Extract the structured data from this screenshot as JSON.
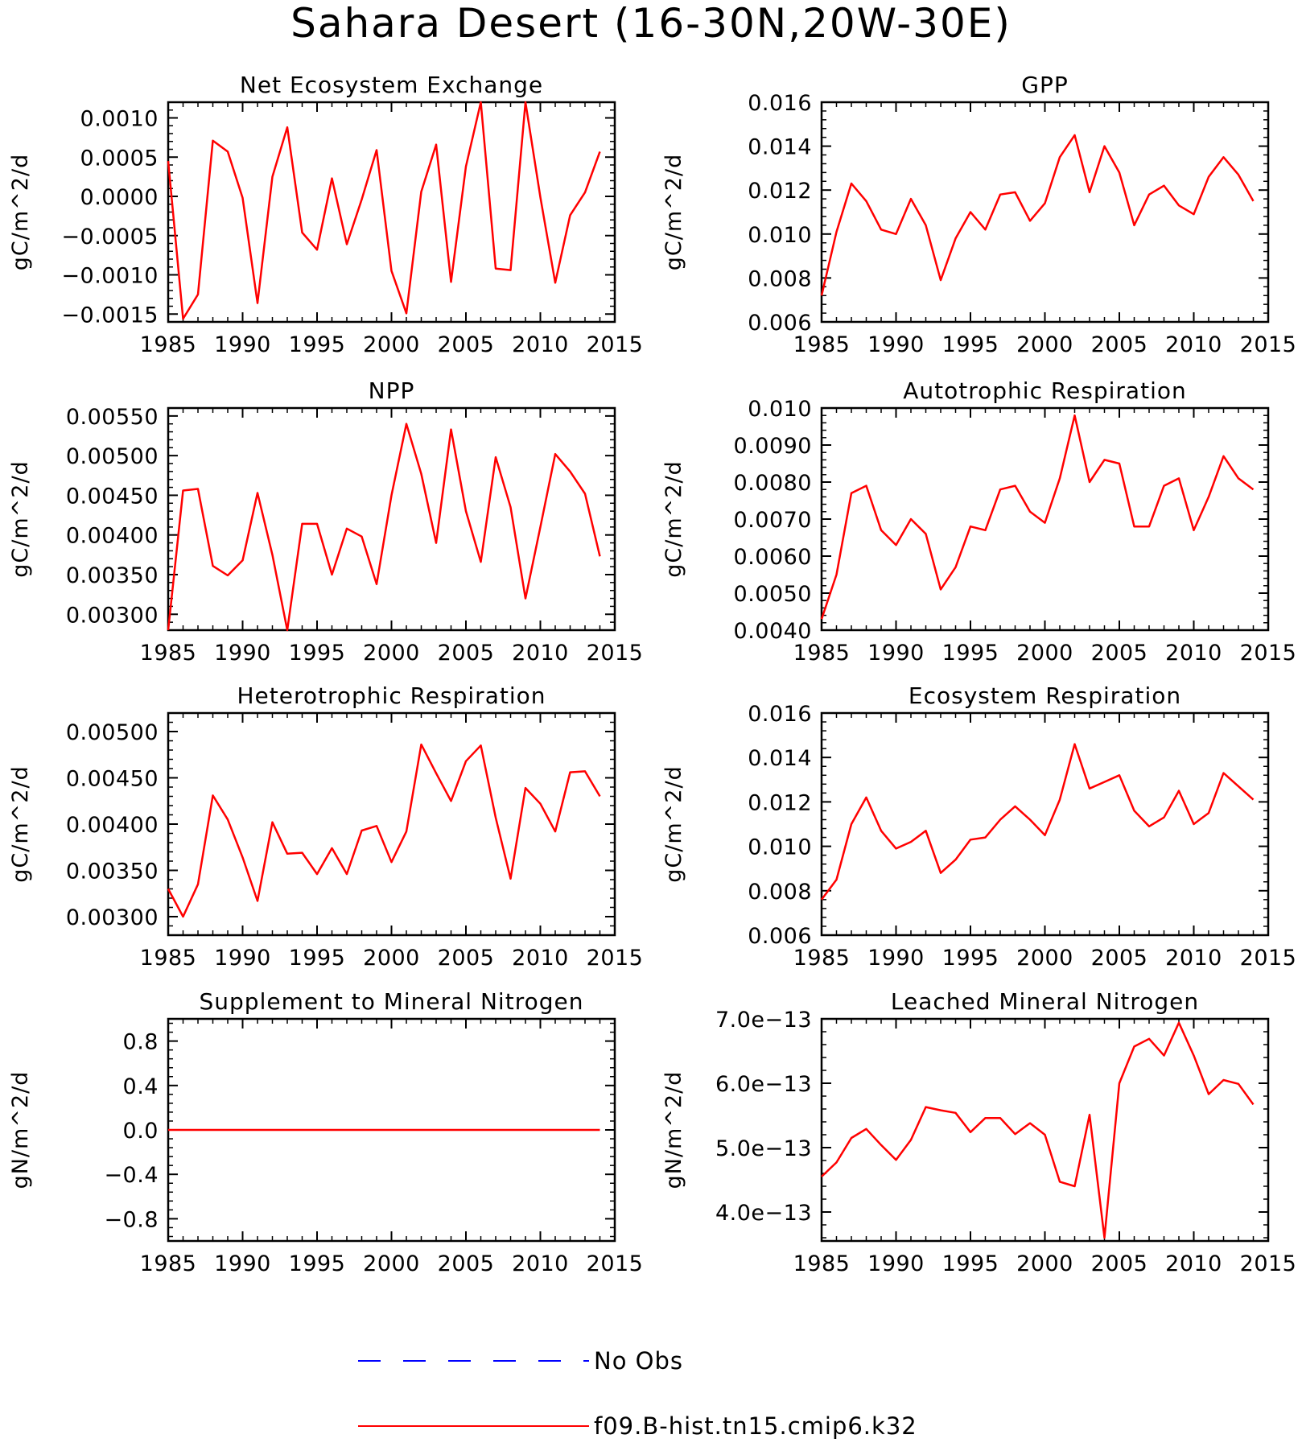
{
  "page": {
    "title": "Sahara Desert (16-30N,20W-30E)"
  },
  "colors": {
    "model_line": "#ff0000",
    "obs_line": "#0000ff",
    "axis": "#000000",
    "background": "#ffffff"
  },
  "legend": {
    "entries": [
      {
        "label": "No Obs",
        "style": "dashed",
        "color": "#0000ff"
      },
      {
        "label": "f09.B-hist.tn15.cmip6.k32",
        "style": "solid",
        "color": "#ff0000"
      }
    ]
  },
  "chart_data": [
    {
      "id": "nee",
      "type": "line",
      "title": "Net Ecosystem Exchange",
      "ylabel": "gC/m^2/d",
      "xlim": [
        1985,
        2015
      ],
      "ylim": [
        -0.0016,
        0.0012
      ],
      "xticks": [
        1985,
        1990,
        1995,
        2000,
        2005,
        2010,
        2015
      ],
      "yticks": [
        -0.0015,
        -0.001,
        -0.0005,
        0.0,
        0.0005,
        0.001
      ],
      "ytick_labels": [
        "−0.0015",
        "−0.0010",
        "−0.0005",
        "0.0000",
        "0.0005",
        "0.0010"
      ],
      "x": [
        1985,
        1986,
        1987,
        1988,
        1989,
        1990,
        1991,
        1992,
        1993,
        1994,
        1995,
        1996,
        1997,
        1998,
        1999,
        2000,
        2001,
        2002,
        2003,
        2004,
        2005,
        2006,
        2007,
        2008,
        2009,
        2010,
        2011,
        2012,
        2013,
        2014
      ],
      "series": [
        {
          "name": "f09.B-hist.tn15.cmip6.k32",
          "values": [
            0.00045,
            -0.00156,
            -0.00125,
            0.00071,
            0.00057,
            -2e-05,
            -0.00136,
            0.00025,
            0.00088,
            -0.00046,
            -0.00068,
            0.00023,
            -0.00061,
            -4e-05,
            0.00059,
            -0.00095,
            -0.00149,
            6e-05,
            0.00066,
            -0.00109,
            0.00038,
            0.00121,
            -0.00092,
            -0.00094,
            0.00121,
            -1e-05,
            -0.0011,
            -0.00024,
            5e-05,
            0.00057
          ]
        }
      ]
    },
    {
      "id": "gpp",
      "type": "line",
      "title": "GPP",
      "ylabel": "gC/m^2/d",
      "xlim": [
        1985,
        2015
      ],
      "ylim": [
        0.006,
        0.016
      ],
      "xticks": [
        1985,
        1990,
        1995,
        2000,
        2005,
        2010,
        2015
      ],
      "yticks": [
        0.006,
        0.008,
        0.01,
        0.012,
        0.014,
        0.016
      ],
      "ytick_labels": [
        "0.006",
        "0.008",
        "0.010",
        "0.012",
        "0.014",
        "0.016"
      ],
      "x": [
        1985,
        1986,
        1987,
        1988,
        1989,
        1990,
        1991,
        1992,
        1993,
        1994,
        1995,
        1996,
        1997,
        1998,
        1999,
        2000,
        2001,
        2002,
        2003,
        2004,
        2005,
        2006,
        2007,
        2008,
        2009,
        2010,
        2011,
        2012,
        2013,
        2014
      ],
      "series": [
        {
          "name": "f09.B-hist.tn15.cmip6.k32",
          "values": [
            0.0072,
            0.0101,
            0.0123,
            0.0115,
            0.0102,
            0.01,
            0.0116,
            0.0104,
            0.0079,
            0.0098,
            0.011,
            0.0102,
            0.0118,
            0.0119,
            0.0106,
            0.0114,
            0.0135,
            0.0145,
            0.0119,
            0.014,
            0.0128,
            0.0104,
            0.0118,
            0.0122,
            0.0113,
            0.0109,
            0.0126,
            0.0135,
            0.0127,
            0.0115
          ]
        }
      ]
    },
    {
      "id": "npp",
      "type": "line",
      "title": "NPP",
      "ylabel": "gC/m^2/d",
      "xlim": [
        1985,
        2015
      ],
      "ylim": [
        0.0028,
        0.0056
      ],
      "xticks": [
        1985,
        1990,
        1995,
        2000,
        2005,
        2010,
        2015
      ],
      "yticks": [
        0.003,
        0.0035,
        0.004,
        0.0045,
        0.005,
        0.0055
      ],
      "ytick_labels": [
        "0.00300",
        "0.00350",
        "0.00400",
        "0.00450",
        "0.00500",
        "0.00550"
      ],
      "x": [
        1985,
        1986,
        1987,
        1988,
        1989,
        1990,
        1991,
        1992,
        1993,
        1994,
        1995,
        1996,
        1997,
        1998,
        1999,
        2000,
        2001,
        2002,
        2003,
        2004,
        2005,
        2006,
        2007,
        2008,
        2009,
        2010,
        2011,
        2012,
        2013,
        2014
      ],
      "series": [
        {
          "name": "f09.B-hist.tn15.cmip6.k32",
          "values": [
            0.0028,
            0.00456,
            0.00458,
            0.00361,
            0.00349,
            0.00368,
            0.00453,
            0.00375,
            0.0028,
            0.00414,
            0.00414,
            0.0035,
            0.00408,
            0.00398,
            0.00338,
            0.0045,
            0.0054,
            0.00477,
            0.0039,
            0.00533,
            0.0043,
            0.00366,
            0.00498,
            0.00435,
            0.0032,
            0.0041,
            0.00502,
            0.0048,
            0.00452,
            0.00373
          ]
        }
      ]
    },
    {
      "id": "ar",
      "type": "line",
      "title": "Autotrophic Respiration",
      "ylabel": "gC/m^2/d",
      "xlim": [
        1985,
        2015
      ],
      "ylim": [
        0.004,
        0.01
      ],
      "xticks": [
        1985,
        1990,
        1995,
        2000,
        2005,
        2010,
        2015
      ],
      "yticks": [
        0.004,
        0.005,
        0.006,
        0.007,
        0.008,
        0.009,
        0.01
      ],
      "ytick_labels": [
        "0.0040",
        "0.0050",
        "0.0060",
        "0.0070",
        "0.0080",
        "0.0090",
        "0.010"
      ],
      "x": [
        1985,
        1986,
        1987,
        1988,
        1989,
        1990,
        1991,
        1992,
        1993,
        1994,
        1995,
        1996,
        1997,
        1998,
        1999,
        2000,
        2001,
        2002,
        2003,
        2004,
        2005,
        2006,
        2007,
        2008,
        2009,
        2010,
        2011,
        2012,
        2013,
        2014
      ],
      "series": [
        {
          "name": "f09.B-hist.tn15.cmip6.k32",
          "values": [
            0.0043,
            0.0055,
            0.0077,
            0.0079,
            0.0067,
            0.0063,
            0.007,
            0.0066,
            0.0051,
            0.0057,
            0.0068,
            0.0067,
            0.0078,
            0.0079,
            0.0072,
            0.0069,
            0.0081,
            0.0098,
            0.008,
            0.0086,
            0.0085,
            0.0068,
            0.0068,
            0.0079,
            0.0081,
            0.0067,
            0.0076,
            0.0087,
            0.0081,
            0.0078
          ]
        }
      ]
    },
    {
      "id": "hr",
      "type": "line",
      "title": "Heterotrophic Respiration",
      "ylabel": "gC/m^2/d",
      "xlim": [
        1985,
        2015
      ],
      "ylim": [
        0.0028,
        0.0052
      ],
      "xticks": [
        1985,
        1990,
        1995,
        2000,
        2005,
        2010,
        2015
      ],
      "yticks": [
        0.003,
        0.0035,
        0.004,
        0.0045,
        0.005
      ],
      "ytick_labels": [
        "0.00300",
        "0.00350",
        "0.00400",
        "0.00450",
        "0.00500"
      ],
      "x": [
        1985,
        1986,
        1987,
        1988,
        1989,
        1990,
        1991,
        1992,
        1993,
        1994,
        1995,
        1996,
        1997,
        1998,
        1999,
        2000,
        2001,
        2002,
        2003,
        2004,
        2005,
        2006,
        2007,
        2008,
        2009,
        2010,
        2011,
        2012,
        2013,
        2014
      ],
      "series": [
        {
          "name": "f09.B-hist.tn15.cmip6.k32",
          "values": [
            0.0033,
            0.003,
            0.00335,
            0.00431,
            0.00405,
            0.00364,
            0.00317,
            0.00402,
            0.00368,
            0.00369,
            0.00346,
            0.00374,
            0.00346,
            0.00393,
            0.00398,
            0.00359,
            0.00392,
            0.00486,
            0.00455,
            0.00425,
            0.00468,
            0.00485,
            0.00407,
            0.00341,
            0.00439,
            0.00422,
            0.00392,
            0.00456,
            0.00457,
            0.0043
          ]
        }
      ]
    },
    {
      "id": "er",
      "type": "line",
      "title": "Ecosystem Respiration",
      "ylabel": "gC/m^2/d",
      "xlim": [
        1985,
        2015
      ],
      "ylim": [
        0.006,
        0.016
      ],
      "xticks": [
        1985,
        1990,
        1995,
        2000,
        2005,
        2010,
        2015
      ],
      "yticks": [
        0.006,
        0.008,
        0.01,
        0.012,
        0.014,
        0.016
      ],
      "ytick_labels": [
        "0.006",
        "0.008",
        "0.010",
        "0.012",
        "0.014",
        "0.016"
      ],
      "x": [
        1985,
        1986,
        1987,
        1988,
        1989,
        1990,
        1991,
        1992,
        1993,
        1994,
        1995,
        1996,
        1997,
        1998,
        1999,
        2000,
        2001,
        2002,
        2003,
        2004,
        2005,
        2006,
        2007,
        2008,
        2009,
        2010,
        2011,
        2012,
        2013,
        2014
      ],
      "series": [
        {
          "name": "f09.B-hist.tn15.cmip6.k32",
          "values": [
            0.0076,
            0.0085,
            0.011,
            0.0122,
            0.0107,
            0.0099,
            0.0102,
            0.0107,
            0.0088,
            0.0094,
            0.0103,
            0.0104,
            0.0112,
            0.0118,
            0.0112,
            0.0105,
            0.0121,
            0.0146,
            0.0126,
            0.0129,
            0.0132,
            0.0116,
            0.0109,
            0.0113,
            0.0125,
            0.011,
            0.0115,
            0.0133,
            0.0127,
            0.0121
          ]
        }
      ]
    },
    {
      "id": "supp",
      "type": "line",
      "title": "Supplement to Mineral Nitrogen",
      "ylabel": "gN/m^2/d",
      "xlim": [
        1985,
        2015
      ],
      "ylim": [
        -1.0,
        1.0
      ],
      "xticks": [
        1985,
        1990,
        1995,
        2000,
        2005,
        2010,
        2015
      ],
      "yticks": [
        -0.8,
        -0.4,
        0.0,
        0.4,
        0.8
      ],
      "ytick_labels": [
        "−0.8",
        "−0.4",
        "0.0",
        "0.4",
        "0.8"
      ],
      "x": [
        1985,
        1986,
        1987,
        1988,
        1989,
        1990,
        1991,
        1992,
        1993,
        1994,
        1995,
        1996,
        1997,
        1998,
        1999,
        2000,
        2001,
        2002,
        2003,
        2004,
        2005,
        2006,
        2007,
        2008,
        2009,
        2010,
        2011,
        2012,
        2013,
        2014
      ],
      "series": [
        {
          "name": "f09.B-hist.tn15.cmip6.k32",
          "values": [
            0,
            0,
            0,
            0,
            0,
            0,
            0,
            0,
            0,
            0,
            0,
            0,
            0,
            0,
            0,
            0,
            0,
            0,
            0,
            0,
            0,
            0,
            0,
            0,
            0,
            0,
            0,
            0,
            0,
            0
          ]
        }
      ]
    },
    {
      "id": "leach",
      "type": "line",
      "title": "Leached Mineral Nitrogen",
      "ylabel": "gN/m^2/d",
      "xlim": [
        1985,
        2015
      ],
      "ylim": [
        3.55e-13,
        7e-13
      ],
      "xticks": [
        1985,
        1990,
        1995,
        2000,
        2005,
        2010,
        2015
      ],
      "yticks": [
        4e-13,
        5e-13,
        6e-13,
        7e-13
      ],
      "ytick_labels": [
        "4.0e−13",
        "5.0e−13",
        "6.0e−13",
        "7.0e−13"
      ],
      "x": [
        1985,
        1986,
        1987,
        1988,
        1989,
        1990,
        1991,
        1992,
        1993,
        1994,
        1995,
        1996,
        1997,
        1998,
        1999,
        2000,
        2001,
        2002,
        2003,
        2004,
        2005,
        2006,
        2007,
        2008,
        2009,
        2010,
        2011,
        2012,
        2013,
        2014
      ],
      "series": [
        {
          "name": "f09.B-hist.tn15.cmip6.k32",
          "values": [
            4.55e-13,
            4.77e-13,
            5.15e-13,
            5.29e-13,
            5.04e-13,
            4.81e-13,
            5.12e-13,
            5.63e-13,
            5.58e-13,
            5.54e-13,
            5.24e-13,
            5.46e-13,
            5.46e-13,
            5.21e-13,
            5.38e-13,
            5.2e-13,
            4.47e-13,
            4.4e-13,
            5.51e-13,
            3.6e-13,
            6e-13,
            6.57e-13,
            6.69e-13,
            6.43e-13,
            6.94e-13,
            6.43e-13,
            5.83e-13,
            6.05e-13,
            5.99e-13,
            5.67e-13
          ]
        }
      ]
    }
  ]
}
